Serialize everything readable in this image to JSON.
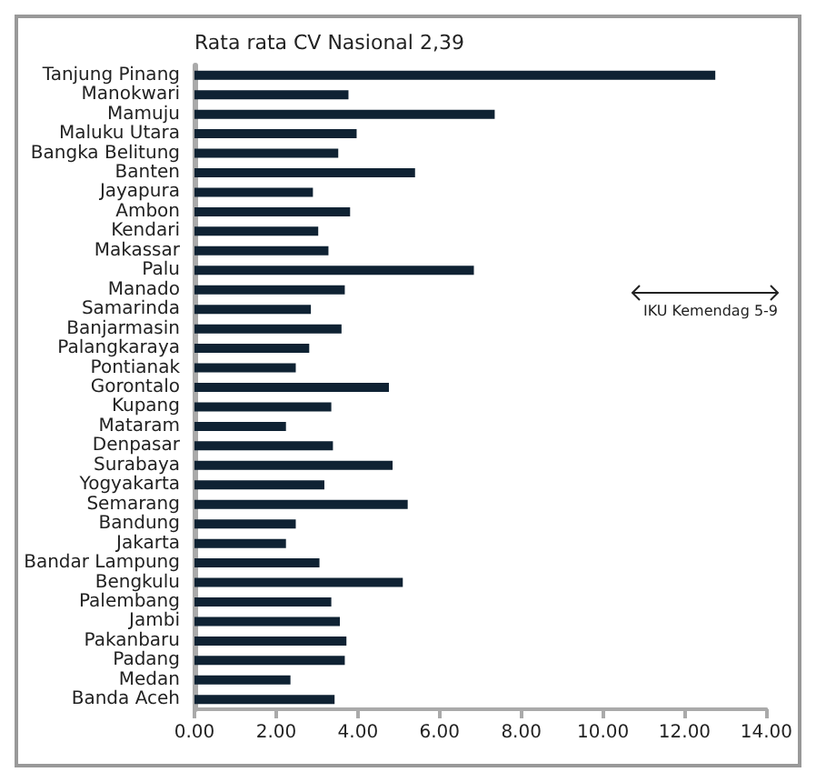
{
  "chart_data": {
    "type": "bar",
    "orientation": "horizontal",
    "categories": [
      "Tanjung Pinang",
      "Manokwari",
      "Mamuju",
      "Maluku Utara",
      "Bangka Belitung",
      "Banten",
      "Jayapura",
      "Ambon",
      "Kendari",
      "Makassar",
      "Palu",
      "Manado",
      "Samarinda",
      "Banjarmasin",
      "Palangkaraya",
      "Pontianak",
      "Gorontalo",
      "Kupang",
      "Mataram",
      "Denpasar",
      "Surabaya",
      "Yogyakarta",
      "Semarang",
      "Bandung",
      "Jakarta",
      "Bandar Lampung",
      "Bengkulu",
      "Palembang",
      "Jambi",
      "Pakanbaru",
      "Padang",
      "Medan",
      "Banda Aceh"
    ],
    "values": [
      12.75,
      3.77,
      7.35,
      3.97,
      3.52,
      5.4,
      2.9,
      3.81,
      3.03,
      3.28,
      6.84,
      3.68,
      2.85,
      3.6,
      2.81,
      2.48,
      4.76,
      3.35,
      2.24,
      3.39,
      4.85,
      3.18,
      5.22,
      2.48,
      2.24,
      3.06,
      5.1,
      3.35,
      3.56,
      3.72,
      3.68,
      2.35,
      3.43
    ],
    "color": "#0f2233",
    "xlim": [
      0,
      14
    ],
    "xticks": [
      {
        "value": 0,
        "label": "0.00"
      },
      {
        "value": 2,
        "label": "2.00"
      },
      {
        "value": 4,
        "label": "4.00"
      },
      {
        "value": 6,
        "label": "6.00"
      },
      {
        "value": 8,
        "label": "8.00"
      },
      {
        "value": 10,
        "label": "10.00"
      },
      {
        "value": 12,
        "label": "12.00"
      },
      {
        "value": 14,
        "label": "14.00"
      }
    ],
    "grid": false,
    "annotations": [
      "Rata rata CV Nasional 2,39",
      "IKU Kemendag 5-9"
    ]
  }
}
